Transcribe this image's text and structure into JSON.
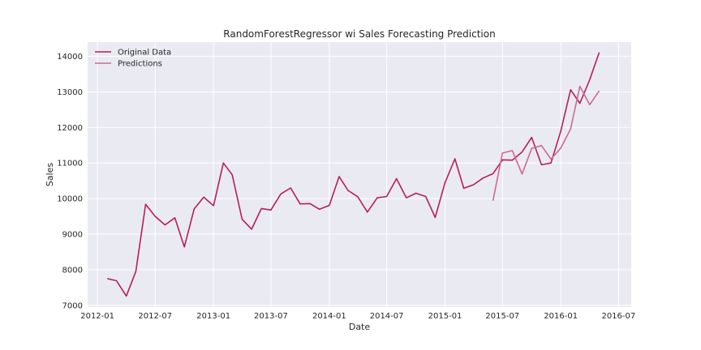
{
  "chart_data": {
    "type": "line",
    "title": "RandomForestRegressor wi Sales Forecasting Prediction",
    "xlabel": "Date",
    "ylabel": "Sales",
    "xlim": [
      "2011-12-01",
      "2016-08-10"
    ],
    "ylim": [
      6950,
      14400
    ],
    "x_ticks": [
      "2012-01",
      "2012-07",
      "2013-01",
      "2013-07",
      "2014-01",
      "2014-07",
      "2015-01",
      "2015-07",
      "2016-01",
      "2016-07"
    ],
    "y_ticks": [
      7000,
      8000,
      9000,
      10000,
      11000,
      12000,
      13000,
      14000
    ],
    "grid": true,
    "legend_position": "top-left",
    "series": [
      {
        "name": "Original Data",
        "color": "#b41f5a",
        "points": [
          [
            "2012-02-01",
            7750
          ],
          [
            "2012-03-01",
            7690
          ],
          [
            "2012-04-01",
            7260
          ],
          [
            "2012-05-01",
            7950
          ],
          [
            "2012-06-01",
            9840
          ],
          [
            "2012-07-01",
            9500
          ],
          [
            "2012-08-01",
            9260
          ],
          [
            "2012-09-01",
            9460
          ],
          [
            "2012-10-01",
            8640
          ],
          [
            "2012-11-01",
            9710
          ],
          [
            "2012-12-01",
            10040
          ],
          [
            "2013-01-01",
            9800
          ],
          [
            "2013-02-01",
            11000
          ],
          [
            "2013-03-01",
            10670
          ],
          [
            "2013-04-01",
            9420
          ],
          [
            "2013-05-01",
            9140
          ],
          [
            "2013-06-01",
            9720
          ],
          [
            "2013-07-01",
            9680
          ],
          [
            "2013-08-01",
            10130
          ],
          [
            "2013-09-01",
            10300
          ],
          [
            "2013-10-01",
            9850
          ],
          [
            "2013-11-01",
            9860
          ],
          [
            "2013-12-01",
            9700
          ],
          [
            "2014-01-01",
            9810
          ],
          [
            "2014-02-01",
            10620
          ],
          [
            "2014-03-01",
            10230
          ],
          [
            "2014-04-01",
            10050
          ],
          [
            "2014-05-01",
            9620
          ],
          [
            "2014-06-01",
            10020
          ],
          [
            "2014-07-01",
            10060
          ],
          [
            "2014-08-01",
            10560
          ],
          [
            "2014-09-01",
            10020
          ],
          [
            "2014-10-01",
            10150
          ],
          [
            "2014-11-01",
            10060
          ],
          [
            "2014-12-01",
            9470
          ],
          [
            "2015-01-01",
            10450
          ],
          [
            "2015-02-01",
            11120
          ],
          [
            "2015-03-01",
            10290
          ],
          [
            "2015-04-01",
            10390
          ],
          [
            "2015-05-01",
            10580
          ],
          [
            "2015-06-01",
            10700
          ],
          [
            "2015-07-01",
            11090
          ],
          [
            "2015-08-01",
            11080
          ],
          [
            "2015-09-01",
            11310
          ],
          [
            "2015-10-01",
            11720
          ],
          [
            "2015-11-01",
            10950
          ],
          [
            "2015-12-01",
            11000
          ],
          [
            "2016-01-01",
            11900
          ],
          [
            "2016-02-01",
            13060
          ],
          [
            "2016-03-01",
            12680
          ],
          [
            "2016-04-01",
            13340
          ],
          [
            "2016-05-01",
            14110
          ]
        ]
      },
      {
        "name": "Predictions",
        "color": "#cc6a93",
        "points": [
          [
            "2015-06-01",
            9940
          ],
          [
            "2015-07-01",
            11280
          ],
          [
            "2015-08-01",
            11350
          ],
          [
            "2015-09-01",
            10690
          ],
          [
            "2015-10-01",
            11410
          ],
          [
            "2015-11-01",
            11490
          ],
          [
            "2015-12-01",
            11110
          ],
          [
            "2016-01-01",
            11420
          ],
          [
            "2016-02-01",
            11960
          ],
          [
            "2016-03-01",
            13160
          ],
          [
            "2016-04-01",
            12640
          ],
          [
            "2016-05-01",
            13030
          ]
        ]
      }
    ]
  }
}
